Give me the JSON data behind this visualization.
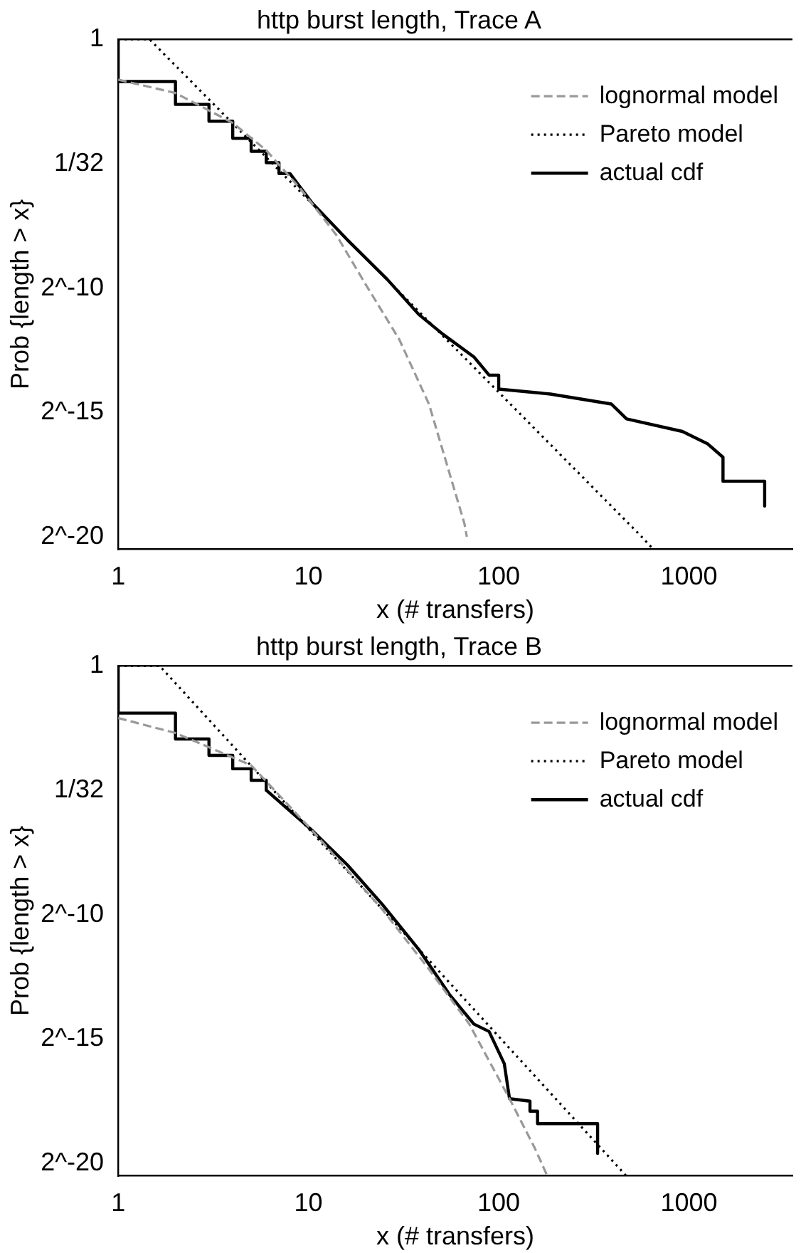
{
  "chart_data": [
    {
      "type": "line",
      "title": "http burst length, Trace A",
      "xlabel": "x (# transfers)",
      "ylabel": "Prob {length > x}",
      "log": "xy",
      "xlim": [
        1,
        3500
      ],
      "xticks": [
        1,
        10,
        100,
        1000
      ],
      "ylim": [
        6.74e-07,
        1
      ],
      "yticks": [
        1,
        {
          "value": 0.03125,
          "label": "1/32"
        },
        {
          "value": 0.0009765625,
          "label": "2^-10"
        },
        {
          "value": 3.0517578125e-05,
          "label": "2^-15"
        },
        {
          "value": 9.5367431640625e-07,
          "label": "2^-20"
        }
      ],
      "grid": false,
      "legend": "top right",
      "marker": "none",
      "series": [
        {
          "name": "lognormal model",
          "color": "#999999",
          "line_style": "dashed",
          "x": [
            1,
            2,
            4,
            6,
            9.2,
            14,
            20,
            30,
            43,
            66,
            68
          ],
          "values": [
            0.325,
            0.224,
            0.0974,
            0.0454,
            0.015,
            0.0043,
            0.00108,
            0.000234,
            3.86e-05,
            1.39e-06,
            9.54e-07
          ]
        },
        {
          "name": "Pareto model",
          "color": "#000000",
          "line_style": "dotted",
          "x": [
            1,
            1.46,
            565,
            650
          ],
          "values": [
            1,
            1,
            9.54e-07,
            6.74e-07
          ]
        },
        {
          "name": "actual cdf",
          "color": "#000000",
          "line_style": "solid",
          "x": [
            1,
            1,
            2,
            2,
            3,
            3,
            4,
            4,
            5,
            5,
            6,
            6,
            7,
            7,
            8,
            10.4,
            16,
            26,
            38,
            51,
            74,
            89,
            100,
            100,
            187,
            391,
            470,
            923,
            1256,
            1510,
            1510,
            2500,
            2500
          ],
          "values": [
            1,
            0.308,
            0.308,
            0.163,
            0.163,
            0.102,
            0.102,
            0.0634,
            0.0634,
            0.0442,
            0.0442,
            0.0321,
            0.0321,
            0.0237,
            0.0237,
            0.0106,
            0.00375,
            0.00124,
            0.000469,
            0.000269,
            0.000144,
            8.63e-05,
            8.63e-05,
            5.86e-05,
            5.1e-05,
            3.86e-05,
            2.55e-05,
            1.8e-05,
            1.27e-05,
            8.77e-06,
            4.5e-06,
            4.5e-06,
            2.25e-06
          ]
        }
      ]
    },
    {
      "type": "line",
      "title": "http burst length, Trace B",
      "xlabel": "x (# transfers)",
      "ylabel": "Prob {length > x}",
      "log": "xy",
      "xlim": [
        1,
        3500
      ],
      "xticks": [
        1,
        10,
        100,
        1000
      ],
      "ylim": [
        6.74e-07,
        1
      ],
      "yticks": [
        1,
        {
          "value": 0.03125,
          "label": "1/32"
        },
        {
          "value": 0.0009765625,
          "label": "2^-10"
        },
        {
          "value": 3.0517578125e-05,
          "label": "2^-15"
        },
        {
          "value": 9.5367431640625e-07,
          "label": "2^-20"
        }
      ],
      "grid": false,
      "legend": "top right",
      "marker": "none",
      "series": [
        {
          "name": "lognormal model",
          "color": "#999999",
          "line_style": "dashed",
          "x": [
            1,
            2,
            5,
            10.4,
            24.5,
            43,
            70,
            114,
            155,
            180
          ],
          "values": [
            0.233,
            0.154,
            0.0625,
            0.0103,
            0.00112,
            0.000213,
            4.63e-05,
            5.78e-06,
            1.45e-06,
            6.74e-07
          ]
        },
        {
          "name": "Pareto model",
          "color": "#000000",
          "line_style": "dotted",
          "x": [
            1,
            1.65,
            468
          ],
          "values": [
            1,
            1,
            6.74e-07
          ]
        },
        {
          "name": "actual cdf",
          "color": "#000000",
          "line_style": "solid",
          "x": [
            1,
            1,
            2,
            2,
            3,
            3,
            4,
            4,
            5,
            5,
            6,
            6,
            10.4,
            16,
            24.5,
            38,
            55,
            74,
            89,
            107,
            114,
            146,
            146,
            160,
            160,
            331,
            331
          ],
          "values": [
            1,
            0.268,
            0.268,
            0.13,
            0.13,
            0.0825,
            0.0825,
            0.0567,
            0.0567,
            0.0412,
            0.0412,
            0.03125,
            0.0103,
            0.00391,
            0.00129,
            0.00037,
            0.000106,
            4.63e-05,
            3.76e-05,
            1.53e-05,
            5.78e-06,
            5.39e-06,
            4.09e-06,
            4.09e-06,
            2.89e-06,
            2.89e-06,
            1.26e-06
          ]
        }
      ]
    }
  ]
}
